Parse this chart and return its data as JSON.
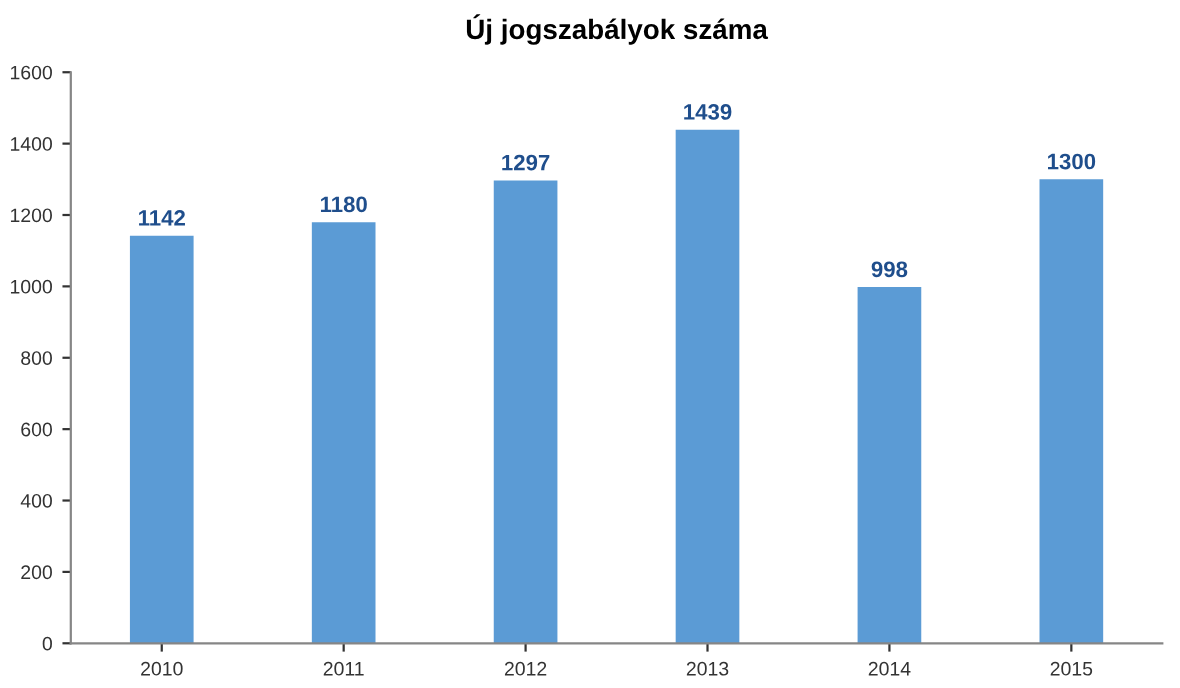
{
  "chart_data": {
    "type": "bar",
    "title": "Új jogszabályok száma",
    "categories": [
      "2010",
      "2011",
      "2012",
      "2013",
      "2014",
      "2015"
    ],
    "values": [
      1142,
      1180,
      1297,
      1439,
      998,
      1300
    ],
    "color": "#5b9bd5",
    "ylim": [
      0,
      1600
    ],
    "yticks": [
      0,
      200,
      400,
      600,
      800,
      1000,
      1200,
      1400,
      1600
    ],
    "grid": false,
    "legend": false,
    "data_labels": true
  }
}
